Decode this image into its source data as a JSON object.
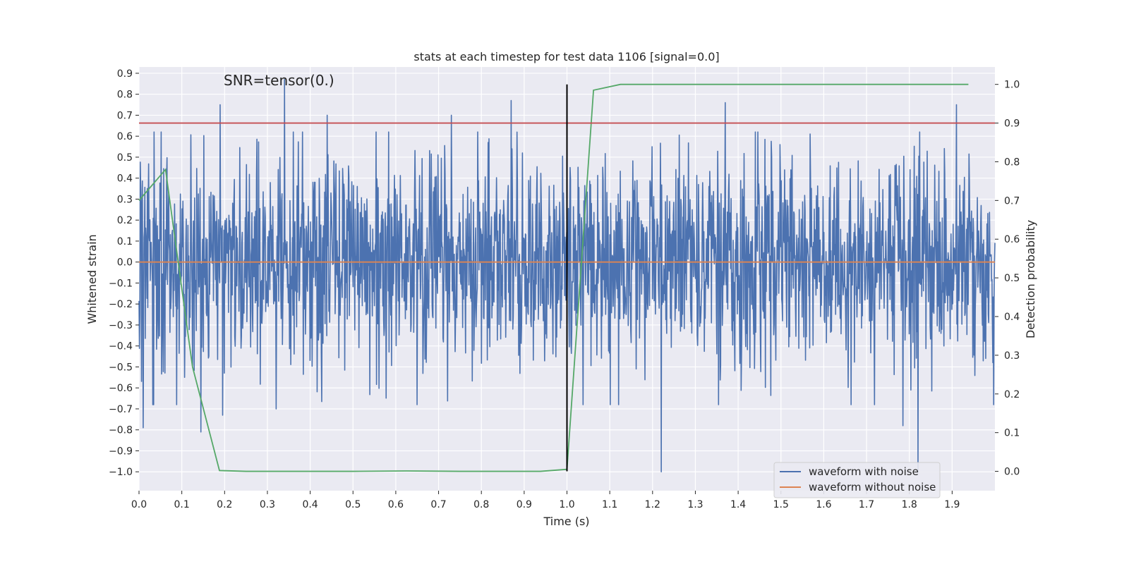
{
  "chart_data": {
    "type": "line",
    "title": "stats at each timestep for test data 1106 [signal=0.0]",
    "annotation": "SNR=tensor(0.)",
    "xlabel": "Time (s)",
    "ylabel_left": "Whitened strain",
    "ylabel_right": "Detection probability",
    "xlim": [
      0.0,
      2.0
    ],
    "ylim_left": [
      -1.09,
      0.93
    ],
    "ylim_right": [
      -0.05,
      1.045
    ],
    "x_ticks": [
      "0.0",
      "0.1",
      "0.2",
      "0.3",
      "0.4",
      "0.5",
      "0.6",
      "0.7",
      "0.8",
      "0.9",
      "1.0",
      "1.1",
      "1.2",
      "1.3",
      "1.4",
      "1.5",
      "1.6",
      "1.7",
      "1.8",
      "1.9"
    ],
    "y_left_ticks": [
      "0.9",
      "0.8",
      "0.7",
      "0.6",
      "0.5",
      "0.4",
      "0.3",
      "0.2",
      "0.1",
      "0.0",
      "−0.1",
      "−0.2",
      "−0.3",
      "−0.4",
      "−0.5",
      "−0.6",
      "−0.7",
      "−0.8",
      "−0.9",
      "−1.0"
    ],
    "y_right_ticks": [
      "1.0",
      "0.9",
      "0.8",
      "0.7",
      "0.6",
      "0.5",
      "0.4",
      "0.3",
      "0.2",
      "0.1",
      "0.0"
    ],
    "legend": {
      "position": "lower-right",
      "entries": [
        {
          "label": "waveform with noise",
          "color": "#4c72b0"
        },
        {
          "label": "waveform without noise",
          "color": "#dd8452"
        }
      ]
    },
    "series": [
      {
        "name": "waveform with noise",
        "axis": "left",
        "color": "#4c72b0",
        "kind": "noise",
        "x_range": [
          0.0,
          2.0
        ],
        "samples": 2048,
        "seed": 1106,
        "sigma": 0.25,
        "peaks": [
          {
            "x": 0.01,
            "y": -0.79
          },
          {
            "x": 0.19,
            "y": 0.75
          },
          {
            "x": 0.34,
            "y": 0.87
          },
          {
            "x": 0.145,
            "y": -0.81
          },
          {
            "x": 0.195,
            "y": -0.73
          },
          {
            "x": 0.32,
            "y": -0.7
          },
          {
            "x": 0.87,
            "y": 0.77
          },
          {
            "x": 1.22,
            "y": -1.0
          },
          {
            "x": 1.37,
            "y": 0.76
          },
          {
            "x": 1.82,
            "y": -1.0
          },
          {
            "x": 1.91,
            "y": 0.75
          },
          {
            "x": 1.785,
            "y": -0.78
          },
          {
            "x": 0.44,
            "y": 0.7
          },
          {
            "x": 0.73,
            "y": 0.7
          }
        ]
      },
      {
        "name": "waveform without noise",
        "axis": "left",
        "color": "#dd8452",
        "x": [
          0.0,
          2.0
        ],
        "y": [
          0.0,
          0.0
        ]
      },
      {
        "name": "detection probability",
        "axis": "right",
        "color": "#55a868",
        "x": [
          0.0,
          0.062,
          0.125,
          0.188,
          0.25,
          0.5,
          0.625,
          0.75,
          0.938,
          0.998,
          1.0,
          1.062,
          1.125,
          1.25,
          1.938
        ],
        "y": [
          0.7,
          0.78,
          0.27,
          0.002,
          0.0,
          0.0,
          0.001,
          0.0,
          0.0,
          0.005,
          0.005,
          0.985,
          1.0,
          1.0,
          1.0
        ]
      },
      {
        "name": "threshold",
        "axis": "right",
        "color": "#c44e52",
        "x": [
          0.0,
          2.0
        ],
        "y": [
          0.9,
          0.9
        ]
      },
      {
        "name": "event marker",
        "axis": "right",
        "color": "#000000",
        "x": [
          1.0,
          1.0
        ],
        "y": [
          0.0,
          1.0
        ]
      }
    ]
  }
}
